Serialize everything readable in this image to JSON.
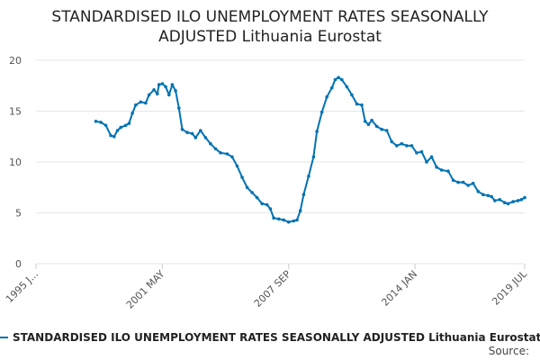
{
  "title_line1": "STANDARDISED ILO UNEMPLOYMENT RATES SEASONALLY",
  "title_line2": "ADJUSTED Lithuania Eurostat",
  "legend_label": "STANDARDISED ILO UNEMPLOYMENT RATES SEASONALLY ADJUSTED Lithuania Eurostat",
  "source_label": "Source:",
  "colors": {
    "series": "#0072b2",
    "grid": "#e6e6e6",
    "axis_text": "#555555"
  },
  "chart_data": {
    "type": "line",
    "title": "STANDARDISED ILO UNEMPLOYMENT RATES SEASONALLY ADJUSTED Lithuania Eurostat",
    "xlabel": "",
    "ylabel": "",
    "ylim": [
      0,
      20
    ],
    "yticks": [
      0,
      5,
      10,
      15,
      20
    ],
    "xlim": [
      "1995-01",
      "2019-07"
    ],
    "xticks": [
      {
        "date": "1995-01",
        "label": "1995 J..."
      },
      {
        "date": "2001-05",
        "label": "2001 MAY"
      },
      {
        "date": "2007-09",
        "label": "2007 SEP"
      },
      {
        "date": "2014-01",
        "label": "2014 JAN"
      },
      {
        "date": "2019-07",
        "label": "2019 JUL"
      }
    ],
    "grid": true,
    "legend_position": "bottom",
    "series": [
      {
        "name": "STANDARDISED ILO UNEMPLOYMENT RATES SEASONALLY ADJUSTED Lithuania Eurostat",
        "points": [
          [
            "1998-01",
            14.0
          ],
          [
            "1998-04",
            13.9
          ],
          [
            "1998-07",
            13.6
          ],
          [
            "1998-10",
            12.6
          ],
          [
            "1998-12",
            12.5
          ],
          [
            "1999-02",
            13.1
          ],
          [
            "1999-04",
            13.4
          ],
          [
            "1999-07",
            13.6
          ],
          [
            "1999-09",
            13.8
          ],
          [
            "1999-11",
            14.8
          ],
          [
            "2000-01",
            15.6
          ],
          [
            "2000-04",
            15.9
          ],
          [
            "2000-07",
            15.8
          ],
          [
            "2000-09",
            16.6
          ],
          [
            "2000-12",
            17.1
          ],
          [
            "2001-02",
            16.7
          ],
          [
            "2001-03",
            17.6
          ],
          [
            "2001-05",
            17.7
          ],
          [
            "2001-07",
            17.4
          ],
          [
            "2001-09",
            16.6
          ],
          [
            "2001-11",
            17.6
          ],
          [
            "2002-01",
            17.0
          ],
          [
            "2002-03",
            15.3
          ],
          [
            "2002-05",
            13.2
          ],
          [
            "2002-08",
            12.9
          ],
          [
            "2002-11",
            12.8
          ],
          [
            "2003-01",
            12.4
          ],
          [
            "2003-04",
            13.1
          ],
          [
            "2003-07",
            12.4
          ],
          [
            "2003-10",
            11.8
          ],
          [
            "2004-01",
            11.3
          ],
          [
            "2004-04",
            10.9
          ],
          [
            "2004-08",
            10.8
          ],
          [
            "2004-11",
            10.5
          ],
          [
            "2005-02",
            9.6
          ],
          [
            "2005-05",
            8.5
          ],
          [
            "2005-08",
            7.5
          ],
          [
            "2005-11",
            7.0
          ],
          [
            "2006-02",
            6.5
          ],
          [
            "2006-05",
            5.9
          ],
          [
            "2006-08",
            5.8
          ],
          [
            "2006-10",
            5.4
          ],
          [
            "2006-12",
            4.5
          ],
          [
            "2007-03",
            4.4
          ],
          [
            "2007-06",
            4.3
          ],
          [
            "2007-09",
            4.1
          ],
          [
            "2007-12",
            4.2
          ],
          [
            "2008-02",
            4.3
          ],
          [
            "2008-04",
            5.2
          ],
          [
            "2008-06",
            6.8
          ],
          [
            "2008-09",
            8.6
          ],
          [
            "2008-12",
            10.5
          ],
          [
            "2009-02",
            13.0
          ],
          [
            "2009-05",
            14.9
          ],
          [
            "2009-08",
            16.4
          ],
          [
            "2009-11",
            17.3
          ],
          [
            "2010-01",
            18.1
          ],
          [
            "2010-03",
            18.3
          ],
          [
            "2010-05",
            18.1
          ],
          [
            "2010-08",
            17.4
          ],
          [
            "2010-11",
            16.6
          ],
          [
            "2011-02",
            15.7
          ],
          [
            "2011-05",
            15.6
          ],
          [
            "2011-07",
            14.0
          ],
          [
            "2011-09",
            13.7
          ],
          [
            "2011-11",
            14.1
          ],
          [
            "2012-02",
            13.5
          ],
          [
            "2012-05",
            13.2
          ],
          [
            "2012-08",
            13.1
          ],
          [
            "2012-11",
            12.0
          ],
          [
            "2013-02",
            11.6
          ],
          [
            "2013-05",
            11.8
          ],
          [
            "2013-08",
            11.6
          ],
          [
            "2013-11",
            11.6
          ],
          [
            "2014-02",
            10.9
          ],
          [
            "2014-05",
            11.0
          ],
          [
            "2014-08",
            10.0
          ],
          [
            "2014-11",
            10.5
          ],
          [
            "2015-02",
            9.5
          ],
          [
            "2015-05",
            9.2
          ],
          [
            "2015-09",
            9.1
          ],
          [
            "2015-12",
            8.2
          ],
          [
            "2016-03",
            8.0
          ],
          [
            "2016-06",
            8.0
          ],
          [
            "2016-09",
            7.7
          ],
          [
            "2016-12",
            7.9
          ],
          [
            "2017-03",
            7.1
          ],
          [
            "2017-06",
            6.8
          ],
          [
            "2017-09",
            6.7
          ],
          [
            "2017-11",
            6.6
          ],
          [
            "2018-01",
            6.2
          ],
          [
            "2018-04",
            6.3
          ],
          [
            "2018-07",
            6.0
          ],
          [
            "2018-09",
            5.9
          ],
          [
            "2018-12",
            6.1
          ],
          [
            "2019-03",
            6.2
          ],
          [
            "2019-05",
            6.3
          ],
          [
            "2019-07",
            6.5
          ]
        ]
      }
    ]
  }
}
